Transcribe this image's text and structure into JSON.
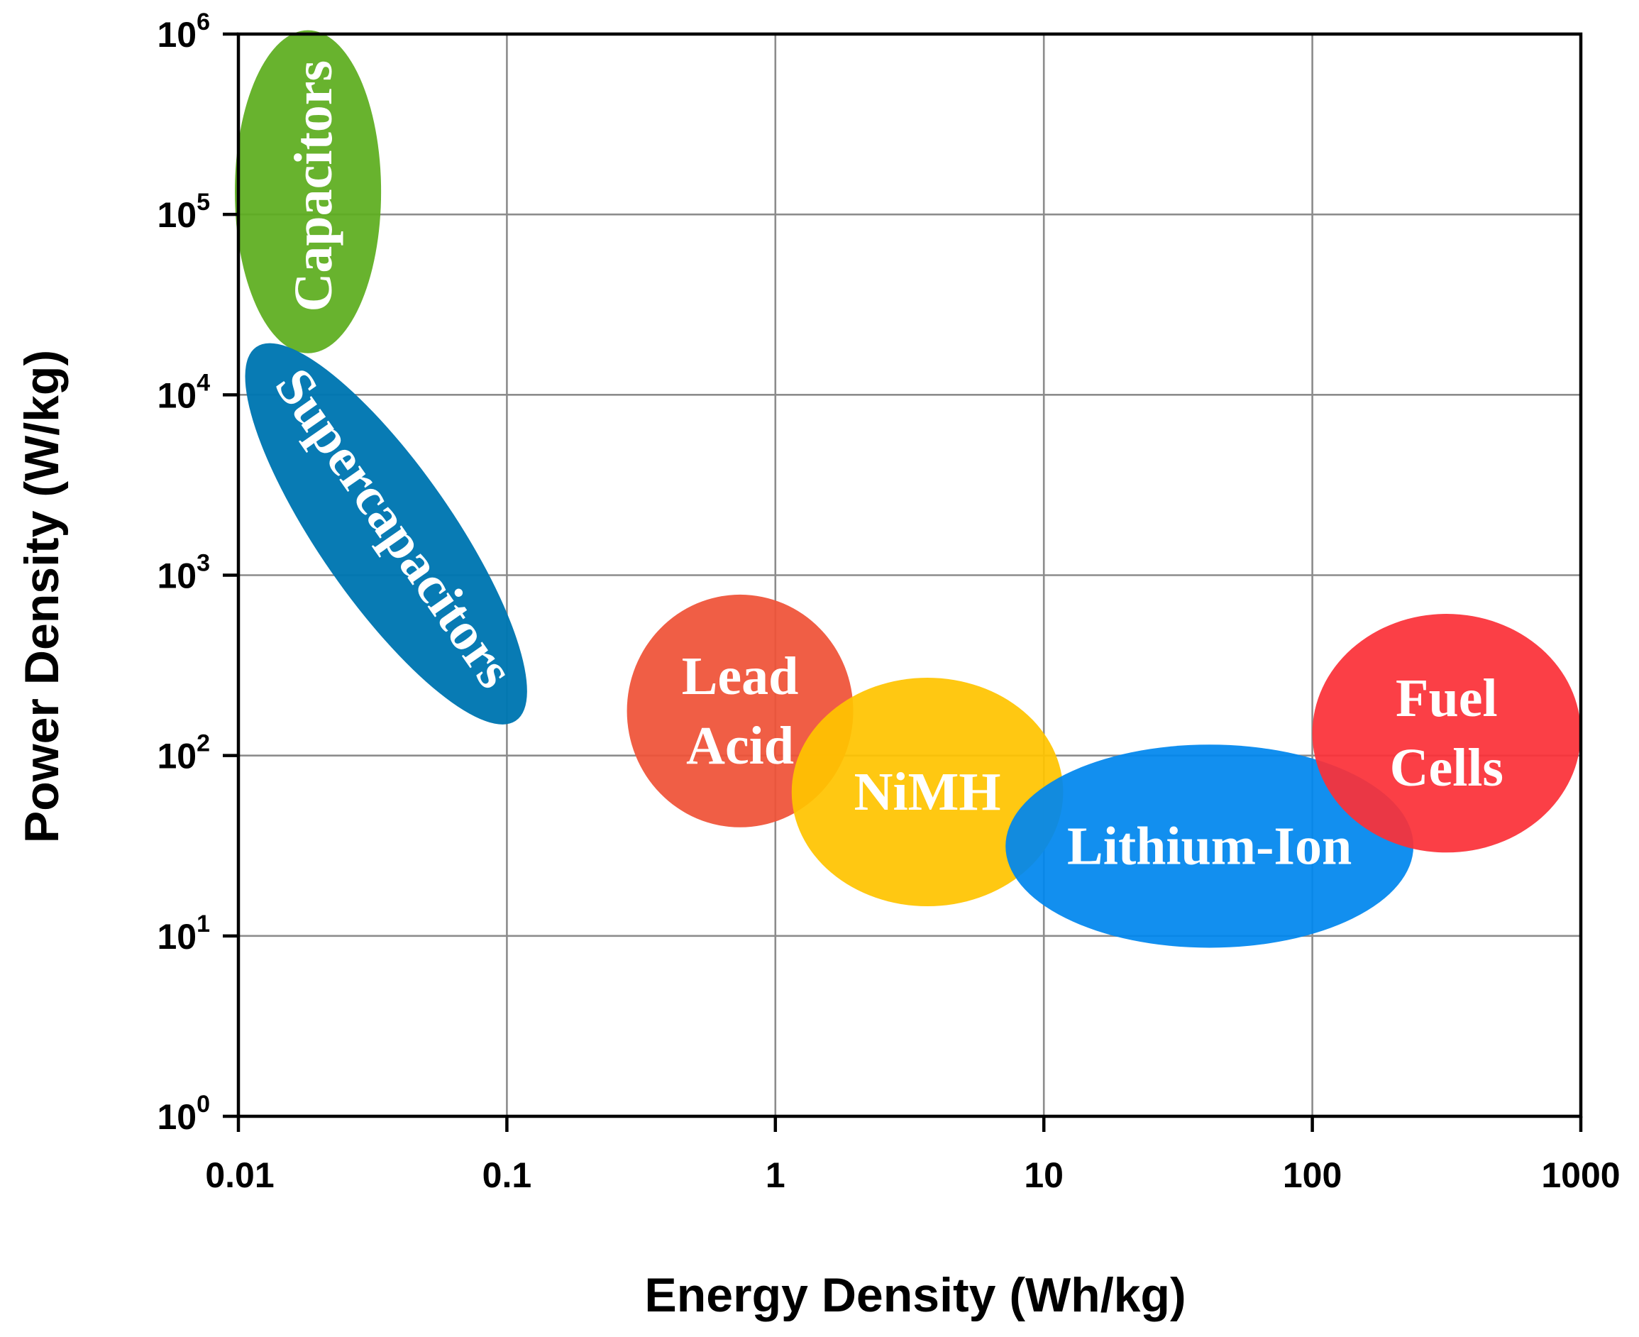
{
  "chart_data": {
    "type": "scatter",
    "title": "",
    "xlabel": "Energy Density (Wh/kg)",
    "ylabel": "Power Density (W/kg)",
    "xscale": "log",
    "yscale": "log",
    "xlim": [
      0.01,
      1000
    ],
    "ylim": [
      1,
      1000000
    ],
    "grid": true,
    "x_ticks": [
      "0.01",
      "0.1",
      "1",
      "10",
      "100",
      "1000"
    ],
    "y_ticks": [
      {
        "base": "10",
        "exp": "0"
      },
      {
        "base": "10",
        "exp": "1"
      },
      {
        "base": "10",
        "exp": "2"
      },
      {
        "base": "10",
        "exp": "3"
      },
      {
        "base": "10",
        "exp": "4"
      },
      {
        "base": "10",
        "exp": "5"
      },
      {
        "base": "10",
        "exp": "6"
      }
    ],
    "regions": [
      {
        "name": "capacitors",
        "label": [
          "Capacitors"
        ],
        "label_orientation": "vertical",
        "color": "#5cad1e",
        "opacity": 0.93,
        "x_range": [
          0.0097,
          0.034
        ],
        "y_range": [
          17000,
          1050000
        ]
      },
      {
        "name": "supercapacitors",
        "label": [
          "Supercapacitors"
        ],
        "label_orientation": "diagonal",
        "color": "#0077b2",
        "opacity": 0.97,
        "x_range": [
          0.0105,
          0.12
        ],
        "y_range": [
          125,
          23000
        ]
      },
      {
        "name": "lead-acid",
        "label": [
          "Lead",
          "Acid"
        ],
        "label_orientation": "horizontal",
        "color": "#ef5237",
        "opacity": 0.93,
        "x_range": [
          0.28,
          1.95
        ],
        "y_range": [
          40,
          780
        ]
      },
      {
        "name": "nimh",
        "label": [
          "NiMH"
        ],
        "label_orientation": "horizontal",
        "color": "#ffc400",
        "opacity": 0.93,
        "x_range": [
          1.15,
          11.8
        ],
        "y_range": [
          14.6,
          270
        ]
      },
      {
        "name": "lithium-ion",
        "label": [
          "Lithium-Ion"
        ],
        "label_orientation": "horizontal",
        "color": "#0086ee",
        "opacity": 0.93,
        "x_range": [
          7.2,
          238
        ],
        "y_range": [
          8.6,
          115
        ]
      },
      {
        "name": "fuel-cells",
        "label": [
          "Fuel",
          "Cells"
        ],
        "label_orientation": "horizontal",
        "color": "#fb3038",
        "opacity": 0.93,
        "x_range": [
          100,
          1000
        ],
        "y_range": [
          29,
          610
        ]
      }
    ]
  }
}
